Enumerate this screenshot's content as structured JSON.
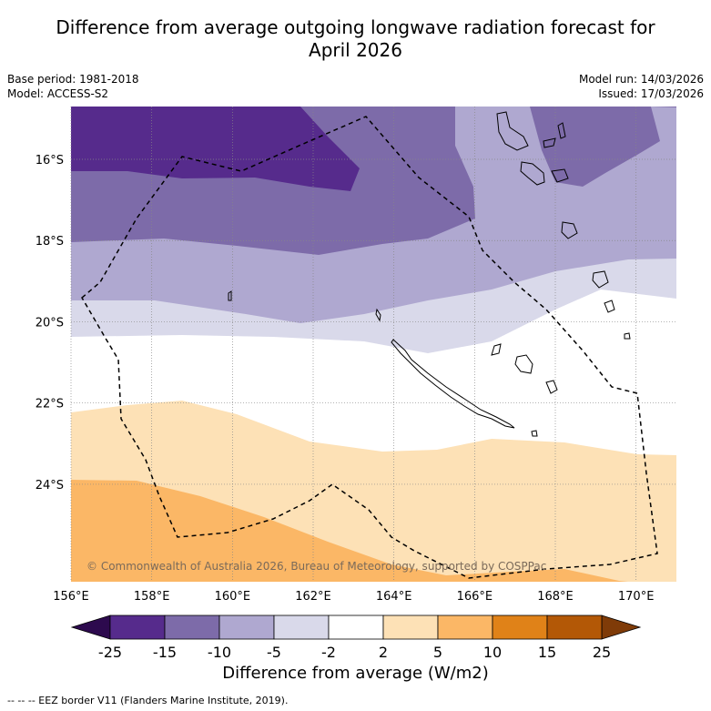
{
  "title_line1": "Difference from average outgoing longwave radiation forecast for",
  "title_line2": "April 2026",
  "base_period": "Base period: 1981-2018",
  "model": "Model: ACCESS-S2",
  "model_run": "Model run: 14/03/2026",
  "issued": "Issued: 17/03/2026",
  "map": {
    "lon_range": [
      156,
      171
    ],
    "lat_range": [
      -26.4,
      -14.7
    ],
    "lat_ticks": [
      {
        "value": -16,
        "label": "16°S"
      },
      {
        "value": -18,
        "label": "18°S"
      },
      {
        "value": -20,
        "label": "20°S"
      },
      {
        "value": -22,
        "label": "22°S"
      },
      {
        "value": -24,
        "label": "24°S"
      }
    ],
    "lon_ticks": [
      {
        "value": 156,
        "label": "156°E"
      },
      {
        "value": 158,
        "label": "158°E"
      },
      {
        "value": 160,
        "label": "160°E"
      },
      {
        "value": 162,
        "label": "162°E"
      },
      {
        "value": 164,
        "label": "164°E"
      },
      {
        "value": 166,
        "label": "166°E"
      },
      {
        "value": 168,
        "label": "168°E"
      },
      {
        "value": 170,
        "label": "170°E"
      }
    ],
    "copyright": "© Commonwealth of Australia 2026, Bureau of Meteorology, supported by COSPPac"
  },
  "colorbar": {
    "title": "Difference from average (W/m2)",
    "labels": [
      "-25",
      "-15",
      "-10",
      "-5",
      "-2",
      "2",
      "5",
      "10",
      "15",
      "25"
    ],
    "colors": [
      "#562b8c",
      "#7d6ba9",
      "#afa8d0",
      "#d9d9ea",
      "#ffffff",
      "#fde1b6",
      "#fbb766",
      "#e08218",
      "#b35806"
    ],
    "extend_low_color": "#2d0a4e",
    "extend_high_color": "#7f3b08"
  },
  "footer": "--  --  -- EEZ border V11 (Flanders Marine Institute, 2019)."
}
